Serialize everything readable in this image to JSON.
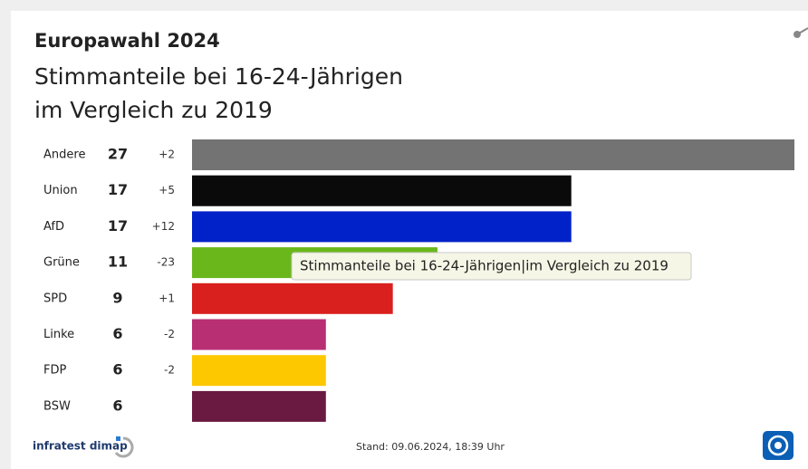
{
  "chart_data": {
    "type": "bar",
    "orientation": "horizontal",
    "title": "Europawahl 2024",
    "subtitle": [
      "Stimmanteile bei 16-24-Jährigen",
      "im Vergleich zu 2019"
    ],
    "categories": [
      "Andere",
      "Union",
      "AfD",
      "Grüne",
      "SPD",
      "Linke",
      "FDP",
      "BSW"
    ],
    "values": [
      27,
      17,
      17,
      11,
      9,
      6,
      6,
      6
    ],
    "changes": [
      "+2",
      "+5",
      "+12",
      "-23",
      "+1",
      "-2",
      "-2",
      null
    ],
    "colors": [
      "#737373",
      "#0a0a0a",
      "#0022c8",
      "#6ab71c",
      "#d9201e",
      "#b82f74",
      "#fdc800",
      "#6a1a40"
    ],
    "tooltip": "Stimmanteile bei 16-24-Jährigen|im Vergleich zu 2019",
    "source": "infratest dimap",
    "footer": "Stand: 09.06.2024, 18:39 Uhr"
  }
}
